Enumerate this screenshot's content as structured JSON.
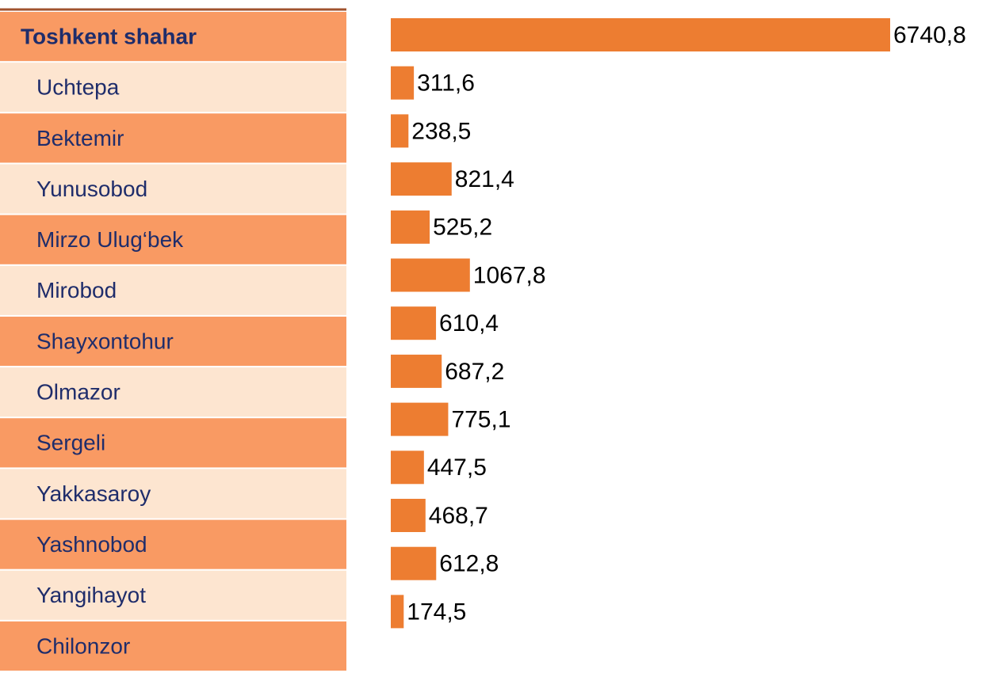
{
  "chart_data": {
    "type": "bar",
    "categories": [
      "Toshkent shahar",
      "Uchtepa",
      "Bektemir",
      "Yunusobod",
      "Mirzo Ulug‘bek",
      "Mirobod",
      "Shayxontohur",
      "Olmazor",
      "Sergeli",
      "Yakkasaroy",
      "Yashnobod",
      "Yangihayot",
      "Chilonzor"
    ],
    "values": [
      6740.8,
      311.6,
      238.5,
      821.4,
      525.2,
      1067.8,
      610.4,
      687.2,
      775.1,
      447.5,
      468.7,
      612.8,
      174.5
    ],
    "value_labels": [
      "6740,8",
      "311,6",
      "238,5",
      "821,4",
      "525,2",
      "1067,8",
      "610,4",
      "687,2",
      "775,1",
      "447,5",
      "468,7",
      "612,8",
      "174,5"
    ],
    "color": "#ED7D31"
  }
}
